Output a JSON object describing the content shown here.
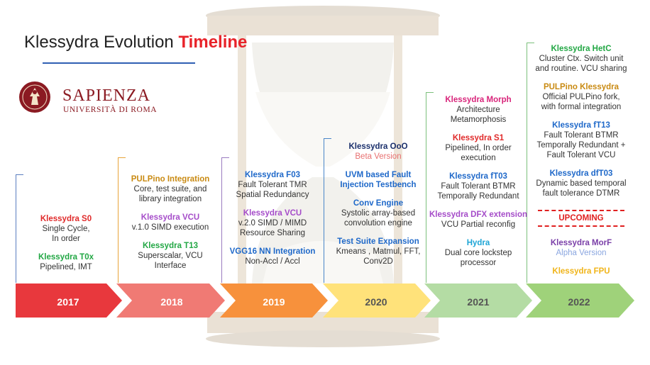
{
  "title": {
    "main": "Klessydra Evolution",
    "accent": "Timeline"
  },
  "logo": {
    "name": "SAPIENZA",
    "subtitle": "UNIVERSITÀ DI ROMA",
    "seal_icon": "sapienza-seal-icon"
  },
  "colors": {
    "y2017": "#e8383d",
    "y2018": "#f07a74",
    "y2019": "#f7913c",
    "y2020": "#ffe27a",
    "y2021": "#b4dca4",
    "y2022": "#9fd27a"
  },
  "timeline": [
    {
      "year": "2017",
      "items": [
        {
          "title": "Klessydra S0",
          "color": "#e02a2a",
          "lines": [
            "Single Cycle,",
            "In order"
          ]
        },
        {
          "title": "Klessydra T0x",
          "color": "#22a744",
          "lines": [
            "Pipelined, IMT"
          ]
        }
      ]
    },
    {
      "year": "2018",
      "items": [
        {
          "title": "PULPino Integration",
          "color": "#c98a12",
          "lines": [
            "Core, test suite, and",
            "library integration"
          ]
        },
        {
          "title": "Klessydra VCU",
          "color": "#a54cc9",
          "lines": [
            "v.1.0 SIMD execution"
          ]
        },
        {
          "title": "Klessydra T13",
          "color": "#22a744",
          "lines": [
            "Superscalar, VCU",
            "Interface"
          ]
        }
      ]
    },
    {
      "year": "2019",
      "items": [
        {
          "title": "Klessydra F03",
          "color": "#1e68c9",
          "lines": [
            "Fault Tolerant TMR",
            "Spatial Redundancy"
          ]
        },
        {
          "title": "Klessydra VCU",
          "color": "#a54cc9",
          "lines": [
            "v.2.0 SIMD / MIMD",
            "Resource Sharing"
          ]
        },
        {
          "title": "VGG16 NN Integration",
          "color": "#1e68c9",
          "lines": [
            "Non-Accl / Accl"
          ]
        }
      ]
    },
    {
      "year": "2020",
      "items": [
        {
          "title": "Klessydra OoO",
          "color": "#1a2f6b",
          "lines": [],
          "subtitle": "Beta Version",
          "subtitle_color": "#e87070"
        },
        {
          "title": "UVM based Fault",
          "color": "#1e68c9",
          "lines": [],
          "title2": "Injection Testbench"
        },
        {
          "title": "Conv Engine",
          "color": "#1e68c9",
          "lines": [
            "Systolic array-based",
            "convolution engine"
          ]
        },
        {
          "title": "Test Suite Expansion",
          "color": "#1e68c9",
          "lines": [
            "Kmeans , Matmul, FFT,",
            "Conv2D"
          ]
        }
      ]
    },
    {
      "year": "2021",
      "items": [
        {
          "title": "Klessydra Morph",
          "color": "#d8247a",
          "lines": [
            "Architecture",
            "Metamorphosis"
          ]
        },
        {
          "title": "Klessydra S1",
          "color": "#e02a2a",
          "lines": [
            "Pipelined, In order",
            "execution"
          ]
        },
        {
          "title": "Klessydra fT03",
          "color": "#1e68c9",
          "lines": [
            "Fault Tolerant BTMR",
            "Temporally Redundant"
          ]
        },
        {
          "title": "Klessydra DFX extension",
          "color": "#a54cc9",
          "lines": [
            "VCU Partial reconfig"
          ]
        },
        {
          "title": "Hydra",
          "color": "#1ea5d6",
          "lines": [
            "Dual core lockstep",
            "processor"
          ]
        }
      ]
    },
    {
      "year": "2022",
      "items": [
        {
          "title": "Klessydra HetC",
          "color": "#22a744",
          "lines": [
            "Cluster Ctx. Switch unit",
            "and routine. VCU sharing"
          ]
        },
        {
          "title": "PULPino Klessydra",
          "color": "#c98a12",
          "lines": [
            "Official PULPino fork,",
            "with formal integration"
          ]
        },
        {
          "title": "Klessydra fT13",
          "color": "#1e68c9",
          "lines": [
            "Fault Tolerant BTMR",
            "Temporally Redundant +",
            "Fault Tolerant VCU"
          ]
        },
        {
          "title": "Klessydra dfT03",
          "color": "#1e68c9",
          "lines": [
            "Dynamic based temporal",
            "fault tolerance DTMR"
          ]
        }
      ],
      "upcoming_label": "UPCOMING",
      "upcoming": [
        {
          "title": "Klessydra MorF",
          "color": "#7a3fa8",
          "subtitle": "Alpha Version",
          "subtitle_color": "#8aa6e0"
        },
        {
          "title": "Klessydra FPU",
          "color": "#f0b419"
        }
      ]
    }
  ]
}
